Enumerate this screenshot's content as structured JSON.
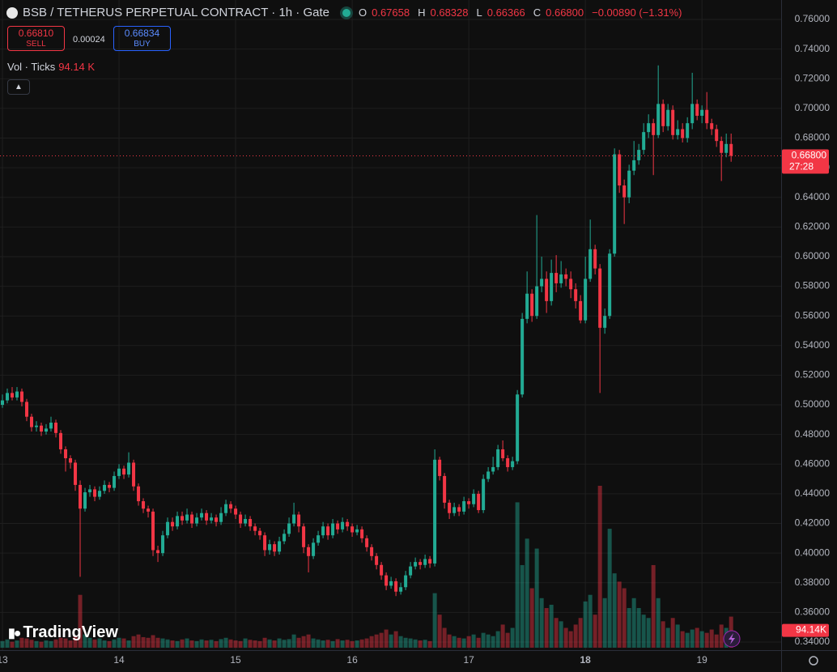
{
  "header": {
    "symbol_title": "BSB / TETHERUS PERPETUAL CONTRACT · 1h · Gate",
    "o_label": "O",
    "o": "0.67658",
    "h_label": "H",
    "h": "0.68328",
    "l_label": "L",
    "l": "0.66366",
    "c_label": "C",
    "c": "0.66800",
    "change": "−0.00890 (−1.31%)"
  },
  "order": {
    "sell_price": "0.66810",
    "sell": "SELL",
    "spread": "0.00024",
    "buy_price": "0.66834",
    "buy": "BUY"
  },
  "volume_legend": {
    "label": "Vol · Ticks",
    "value": "94.14 K"
  },
  "brand": "TradingView",
  "chart_data": {
    "type": "candlestick",
    "up_color": "#22ab94",
    "down_color": "#f23645",
    "grid": true,
    "open": [
      0.5,
      0.503,
      0.508,
      0.505,
      0.509,
      0.502,
      0.492,
      0.485,
      0.486,
      0.482,
      0.484,
      0.488,
      0.481,
      0.47,
      0.464,
      0.461,
      0.446,
      0.43,
      0.441,
      0.443,
      0.438,
      0.442,
      0.446,
      0.444,
      0.452,
      0.457,
      0.453,
      0.461,
      0.445,
      0.435,
      0.43,
      0.428,
      0.402,
      0.4,
      0.412,
      0.421,
      0.418,
      0.425,
      0.422,
      0.426,
      0.42,
      0.424,
      0.427,
      0.422,
      0.424,
      0.421,
      0.427,
      0.433,
      0.43,
      0.426,
      0.42,
      0.423,
      0.418,
      0.415,
      0.412,
      0.402,
      0.406,
      0.401,
      0.408,
      0.413,
      0.42,
      0.426,
      0.418,
      0.404,
      0.398,
      0.407,
      0.412,
      0.418,
      0.412,
      0.42,
      0.416,
      0.421,
      0.418,
      0.414,
      0.416,
      0.41,
      0.404,
      0.398,
      0.392,
      0.385,
      0.378,
      0.381,
      0.374,
      0.377,
      0.385,
      0.391,
      0.394,
      0.392,
      0.396,
      0.393,
      0.463,
      0.452,
      0.434,
      0.427,
      0.431,
      0.428,
      0.435,
      0.433,
      0.44,
      0.429,
      0.45,
      0.455,
      0.458,
      0.47,
      0.464,
      0.458,
      0.462,
      0.507,
      0.558,
      0.575,
      0.56,
      0.58,
      0.585,
      0.57,
      0.589,
      0.582,
      0.588,
      0.585,
      0.578,
      0.57,
      0.557,
      0.585,
      0.605,
      0.592,
      0.552,
      0.56,
      0.602,
      0.669,
      0.648,
      0.64,
      0.658,
      0.665,
      0.672,
      0.684,
      0.69,
      0.682,
      0.703,
      0.688,
      0.699,
      0.682,
      0.686,
      0.68,
      0.69,
      0.703,
      0.695,
      0.699,
      0.69,
      0.686,
      0.678,
      0.67,
      0.676
    ],
    "high": [
      0.507,
      0.511,
      0.512,
      0.512,
      0.511,
      0.504,
      0.494,
      0.489,
      0.488,
      0.487,
      0.492,
      0.49,
      0.483,
      0.472,
      0.466,
      0.463,
      0.449,
      0.444,
      0.446,
      0.445,
      0.445,
      0.449,
      0.448,
      0.455,
      0.46,
      0.459,
      0.468,
      0.463,
      0.447,
      0.437,
      0.432,
      0.43,
      0.405,
      0.415,
      0.424,
      0.424,
      0.428,
      0.428,
      0.43,
      0.428,
      0.427,
      0.43,
      0.429,
      0.427,
      0.426,
      0.431,
      0.436,
      0.435,
      0.432,
      0.428,
      0.426,
      0.425,
      0.42,
      0.417,
      0.414,
      0.409,
      0.408,
      0.411,
      0.416,
      0.424,
      0.434,
      0.428,
      0.42,
      0.406,
      0.41,
      0.415,
      0.421,
      0.42,
      0.423,
      0.422,
      0.424,
      0.423,
      0.42,
      0.419,
      0.418,
      0.412,
      0.406,
      0.4,
      0.394,
      0.387,
      0.384,
      0.383,
      0.38,
      0.388,
      0.394,
      0.397,
      0.396,
      0.399,
      0.398,
      0.47,
      0.465,
      0.454,
      0.436,
      0.434,
      0.433,
      0.438,
      0.437,
      0.443,
      0.442,
      0.453,
      0.458,
      0.465,
      0.473,
      0.476,
      0.466,
      0.465,
      0.51,
      0.562,
      0.59,
      0.578,
      0.628,
      0.6,
      0.59,
      0.598,
      0.601,
      0.597,
      0.592,
      0.59,
      0.582,
      0.574,
      0.6,
      0.625,
      0.608,
      0.595,
      0.565,
      0.605,
      0.673,
      0.672,
      0.652,
      0.662,
      0.678,
      0.676,
      0.69,
      0.696,
      0.693,
      0.729,
      0.706,
      0.703,
      0.702,
      0.692,
      0.69,
      0.694,
      0.724,
      0.706,
      0.702,
      0.711,
      0.693,
      0.689,
      0.681,
      0.683,
      0.683
    ],
    "low": [
      0.498,
      0.501,
      0.503,
      0.503,
      0.499,
      0.489,
      0.482,
      0.482,
      0.479,
      0.48,
      0.482,
      0.478,
      0.467,
      0.455,
      0.457,
      0.442,
      0.384,
      0.428,
      0.438,
      0.435,
      0.436,
      0.44,
      0.441,
      0.442,
      0.45,
      0.45,
      0.451,
      0.442,
      0.432,
      0.427,
      0.424,
      0.398,
      0.394,
      0.398,
      0.41,
      0.415,
      0.416,
      0.419,
      0.42,
      0.417,
      0.418,
      0.422,
      0.419,
      0.42,
      0.418,
      0.419,
      0.425,
      0.427,
      0.423,
      0.417,
      0.418,
      0.415,
      0.412,
      0.409,
      0.398,
      0.399,
      0.398,
      0.399,
      0.406,
      0.411,
      0.418,
      0.414,
      0.4,
      0.387,
      0.396,
      0.405,
      0.41,
      0.409,
      0.41,
      0.413,
      0.414,
      0.415,
      0.411,
      0.412,
      0.407,
      0.401,
      0.395,
      0.389,
      0.382,
      0.375,
      0.376,
      0.371,
      0.372,
      0.375,
      0.383,
      0.389,
      0.389,
      0.39,
      0.39,
      0.391,
      0.449,
      0.43,
      0.423,
      0.425,
      0.425,
      0.426,
      0.43,
      0.431,
      0.427,
      0.427,
      0.448,
      0.453,
      0.456,
      0.462,
      0.455,
      0.456,
      0.46,
      0.505,
      0.555,
      0.556,
      0.558,
      0.576,
      0.562,
      0.567,
      0.576,
      0.579,
      0.58,
      0.572,
      0.565,
      0.555,
      0.555,
      0.583,
      0.588,
      0.508,
      0.548,
      0.558,
      0.6,
      0.643,
      0.622,
      0.636,
      0.655,
      0.662,
      0.669,
      0.68,
      0.655,
      0.68,
      0.684,
      0.685,
      0.679,
      0.679,
      0.677,
      0.677,
      0.686,
      0.692,
      0.69,
      0.686,
      0.682,
      0.674,
      0.651,
      0.667,
      0.664
    ],
    "close": [
      0.503,
      0.508,
      0.505,
      0.509,
      0.502,
      0.492,
      0.485,
      0.486,
      0.482,
      0.484,
      0.488,
      0.481,
      0.47,
      0.464,
      0.461,
      0.446,
      0.43,
      0.441,
      0.443,
      0.438,
      0.442,
      0.446,
      0.444,
      0.452,
      0.457,
      0.453,
      0.461,
      0.445,
      0.435,
      0.43,
      0.428,
      0.402,
      0.4,
      0.412,
      0.421,
      0.418,
      0.425,
      0.422,
      0.426,
      0.42,
      0.424,
      0.427,
      0.422,
      0.424,
      0.421,
      0.427,
      0.433,
      0.43,
      0.426,
      0.42,
      0.423,
      0.418,
      0.415,
      0.412,
      0.402,
      0.406,
      0.401,
      0.408,
      0.413,
      0.42,
      0.426,
      0.418,
      0.404,
      0.398,
      0.407,
      0.412,
      0.418,
      0.412,
      0.42,
      0.416,
      0.421,
      0.418,
      0.414,
      0.416,
      0.41,
      0.404,
      0.398,
      0.392,
      0.385,
      0.378,
      0.381,
      0.374,
      0.377,
      0.385,
      0.391,
      0.394,
      0.392,
      0.396,
      0.393,
      0.463,
      0.452,
      0.434,
      0.427,
      0.431,
      0.428,
      0.435,
      0.433,
      0.44,
      0.429,
      0.45,
      0.455,
      0.458,
      0.47,
      0.464,
      0.458,
      0.462,
      0.507,
      0.558,
      0.575,
      0.56,
      0.58,
      0.585,
      0.57,
      0.589,
      0.582,
      0.588,
      0.585,
      0.578,
      0.57,
      0.557,
      0.585,
      0.605,
      0.592,
      0.552,
      0.56,
      0.602,
      0.669,
      0.648,
      0.64,
      0.658,
      0.665,
      0.672,
      0.684,
      0.69,
      0.682,
      0.703,
      0.688,
      0.699,
      0.682,
      0.686,
      0.68,
      0.69,
      0.703,
      0.695,
      0.699,
      0.69,
      0.686,
      0.678,
      0.67,
      0.676,
      0.668
    ],
    "volume": [
      20,
      25,
      18,
      22,
      30,
      28,
      24,
      20,
      18,
      22,
      20,
      25,
      30,
      28,
      22,
      35,
      160,
      40,
      30,
      25,
      28,
      22,
      20,
      25,
      30,
      28,
      22,
      35,
      40,
      32,
      30,
      38,
      30,
      28,
      25,
      22,
      20,
      25,
      28,
      22,
      20,
      25,
      22,
      24,
      20,
      26,
      30,
      25,
      22,
      20,
      28,
      24,
      22,
      20,
      30,
      25,
      22,
      28,
      24,
      26,
      40,
      30,
      35,
      40,
      28,
      25,
      22,
      24,
      20,
      26,
      22,
      24,
      20,
      22,
      25,
      28,
      35,
      40,
      45,
      55,
      40,
      50,
      35,
      30,
      28,
      25,
      22,
      24,
      20,
      165,
      100,
      60,
      40,
      35,
      30,
      28,
      35,
      40,
      30,
      45,
      40,
      35,
      50,
      70,
      45,
      60,
      440,
      250,
      330,
      180,
      300,
      150,
      120,
      130,
      90,
      80,
      60,
      50,
      70,
      90,
      140,
      160,
      100,
      490,
      150,
      360,
      225,
      200,
      180,
      120,
      150,
      120,
      100,
      90,
      250,
      150,
      80,
      60,
      90,
      70,
      50,
      45,
      55,
      60,
      50,
      45,
      55,
      40,
      70,
      60,
      94.14
    ],
    "volume_tag": "94.14K",
    "last_price": {
      "value": 0.668,
      "label": "0.66800"
    },
    "countdown": "27:28",
    "xlim": [
      -0.5,
      160.3
    ],
    "xticks": [
      {
        "value": 0,
        "label": "13"
      },
      {
        "value": 24,
        "label": "14"
      },
      {
        "value": 48,
        "label": "15"
      },
      {
        "value": 72,
        "label": "16"
      },
      {
        "value": 96,
        "label": "17"
      },
      {
        "value": 120,
        "label": "18",
        "bold": true
      },
      {
        "value": 144,
        "label": "19"
      }
    ],
    "ylim": [
      0.34,
      0.76
    ],
    "yticks": [
      {
        "value": 0.34,
        "label": "0.34000"
      },
      {
        "value": 0.36,
        "label": "0.36000"
      },
      {
        "value": 0.38,
        "label": "0.38000"
      },
      {
        "value": 0.4,
        "label": "0.40000"
      },
      {
        "value": 0.42,
        "label": "0.42000"
      },
      {
        "value": 0.44,
        "label": "0.44000"
      },
      {
        "value": 0.46,
        "label": "0.46000"
      },
      {
        "value": 0.48,
        "label": "0.48000"
      },
      {
        "value": 0.5,
        "label": "0.50000"
      },
      {
        "value": 0.52,
        "label": "0.52000"
      },
      {
        "value": 0.54,
        "label": "0.54000"
      },
      {
        "value": 0.56,
        "label": "0.56000"
      },
      {
        "value": 0.58,
        "label": "0.58000"
      },
      {
        "value": 0.6,
        "label": "0.60000"
      },
      {
        "value": 0.62,
        "label": "0.62000"
      },
      {
        "value": 0.64,
        "label": "0.64000"
      },
      {
        "value": 0.66,
        "label": "0.66000"
      },
      {
        "value": 0.68,
        "label": "0.68000"
      },
      {
        "value": 0.7,
        "label": "0.70000"
      },
      {
        "value": 0.72,
        "label": "0.72000"
      },
      {
        "value": 0.74,
        "label": "0.74000"
      },
      {
        "value": 0.76,
        "label": "0.76000"
      }
    ]
  }
}
